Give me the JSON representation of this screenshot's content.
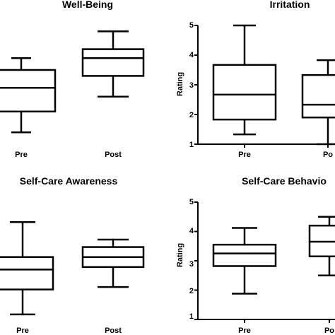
{
  "chart_data": [
    {
      "type": "box",
      "title": "Well-Being",
      "xlabel": "",
      "ylabel": "",
      "categories": [
        "Pre",
        "Post"
      ],
      "yticks": [],
      "boxes": [
        {
          "min": 1.4,
          "q1": 2.1,
          "median": 2.9,
          "q3": 3.5,
          "max": 3.9
        },
        {
          "min": 2.6,
          "q1": 3.3,
          "median": 3.9,
          "q3": 4.2,
          "max": 4.8
        }
      ],
      "ylim": [
        1,
        5
      ],
      "grid": false,
      "legend": "none"
    },
    {
      "type": "box",
      "title": "Irritation",
      "xlabel": "",
      "ylabel": "Rating",
      "categories": [
        "Pre",
        "Po"
      ],
      "yticks": [
        "1",
        "2",
        "3",
        "4",
        "5"
      ],
      "boxes": [
        {
          "min": 1.33,
          "q1": 1.83,
          "median": 2.67,
          "q3": 3.67,
          "max": 5.0
        },
        {
          "min": 1.0,
          "q1": 1.9,
          "median": 2.33,
          "q3": 3.33,
          "max": 3.83
        }
      ],
      "ylim": [
        1,
        5
      ],
      "grid": false,
      "legend": "none"
    },
    {
      "type": "box",
      "title": "Self-Care Awareness",
      "xlabel": "",
      "ylabel": "",
      "categories": [
        "Pre",
        "Post"
      ],
      "yticks": [],
      "boxes": [
        {
          "min": 1.5,
          "q1": 2.5,
          "median": 3.3,
          "q3": 3.8,
          "max": 5.2
        },
        {
          "min": 2.6,
          "q1": 3.4,
          "median": 3.8,
          "q3": 4.2,
          "max": 4.5
        }
      ],
      "ylim": [
        1.3,
        6.0
      ],
      "grid": false,
      "legend": "none"
    },
    {
      "type": "box",
      "title": "Self-Care Behavio",
      "xlabel": "",
      "ylabel": "Rating",
      "categories": [
        "Pre",
        "Po"
      ],
      "yticks": [
        "1",
        "2",
        "3",
        "4",
        "5"
      ],
      "boxes": [
        {
          "min": 1.88,
          "q1": 2.82,
          "median": 3.25,
          "q3": 3.55,
          "max": 4.12
        },
        {
          "min": 2.5,
          "q1": 3.15,
          "median": 3.65,
          "q3": 4.2,
          "max": 4.5
        }
      ],
      "ylim": [
        1,
        5
      ],
      "grid": false,
      "legend": "none"
    }
  ]
}
